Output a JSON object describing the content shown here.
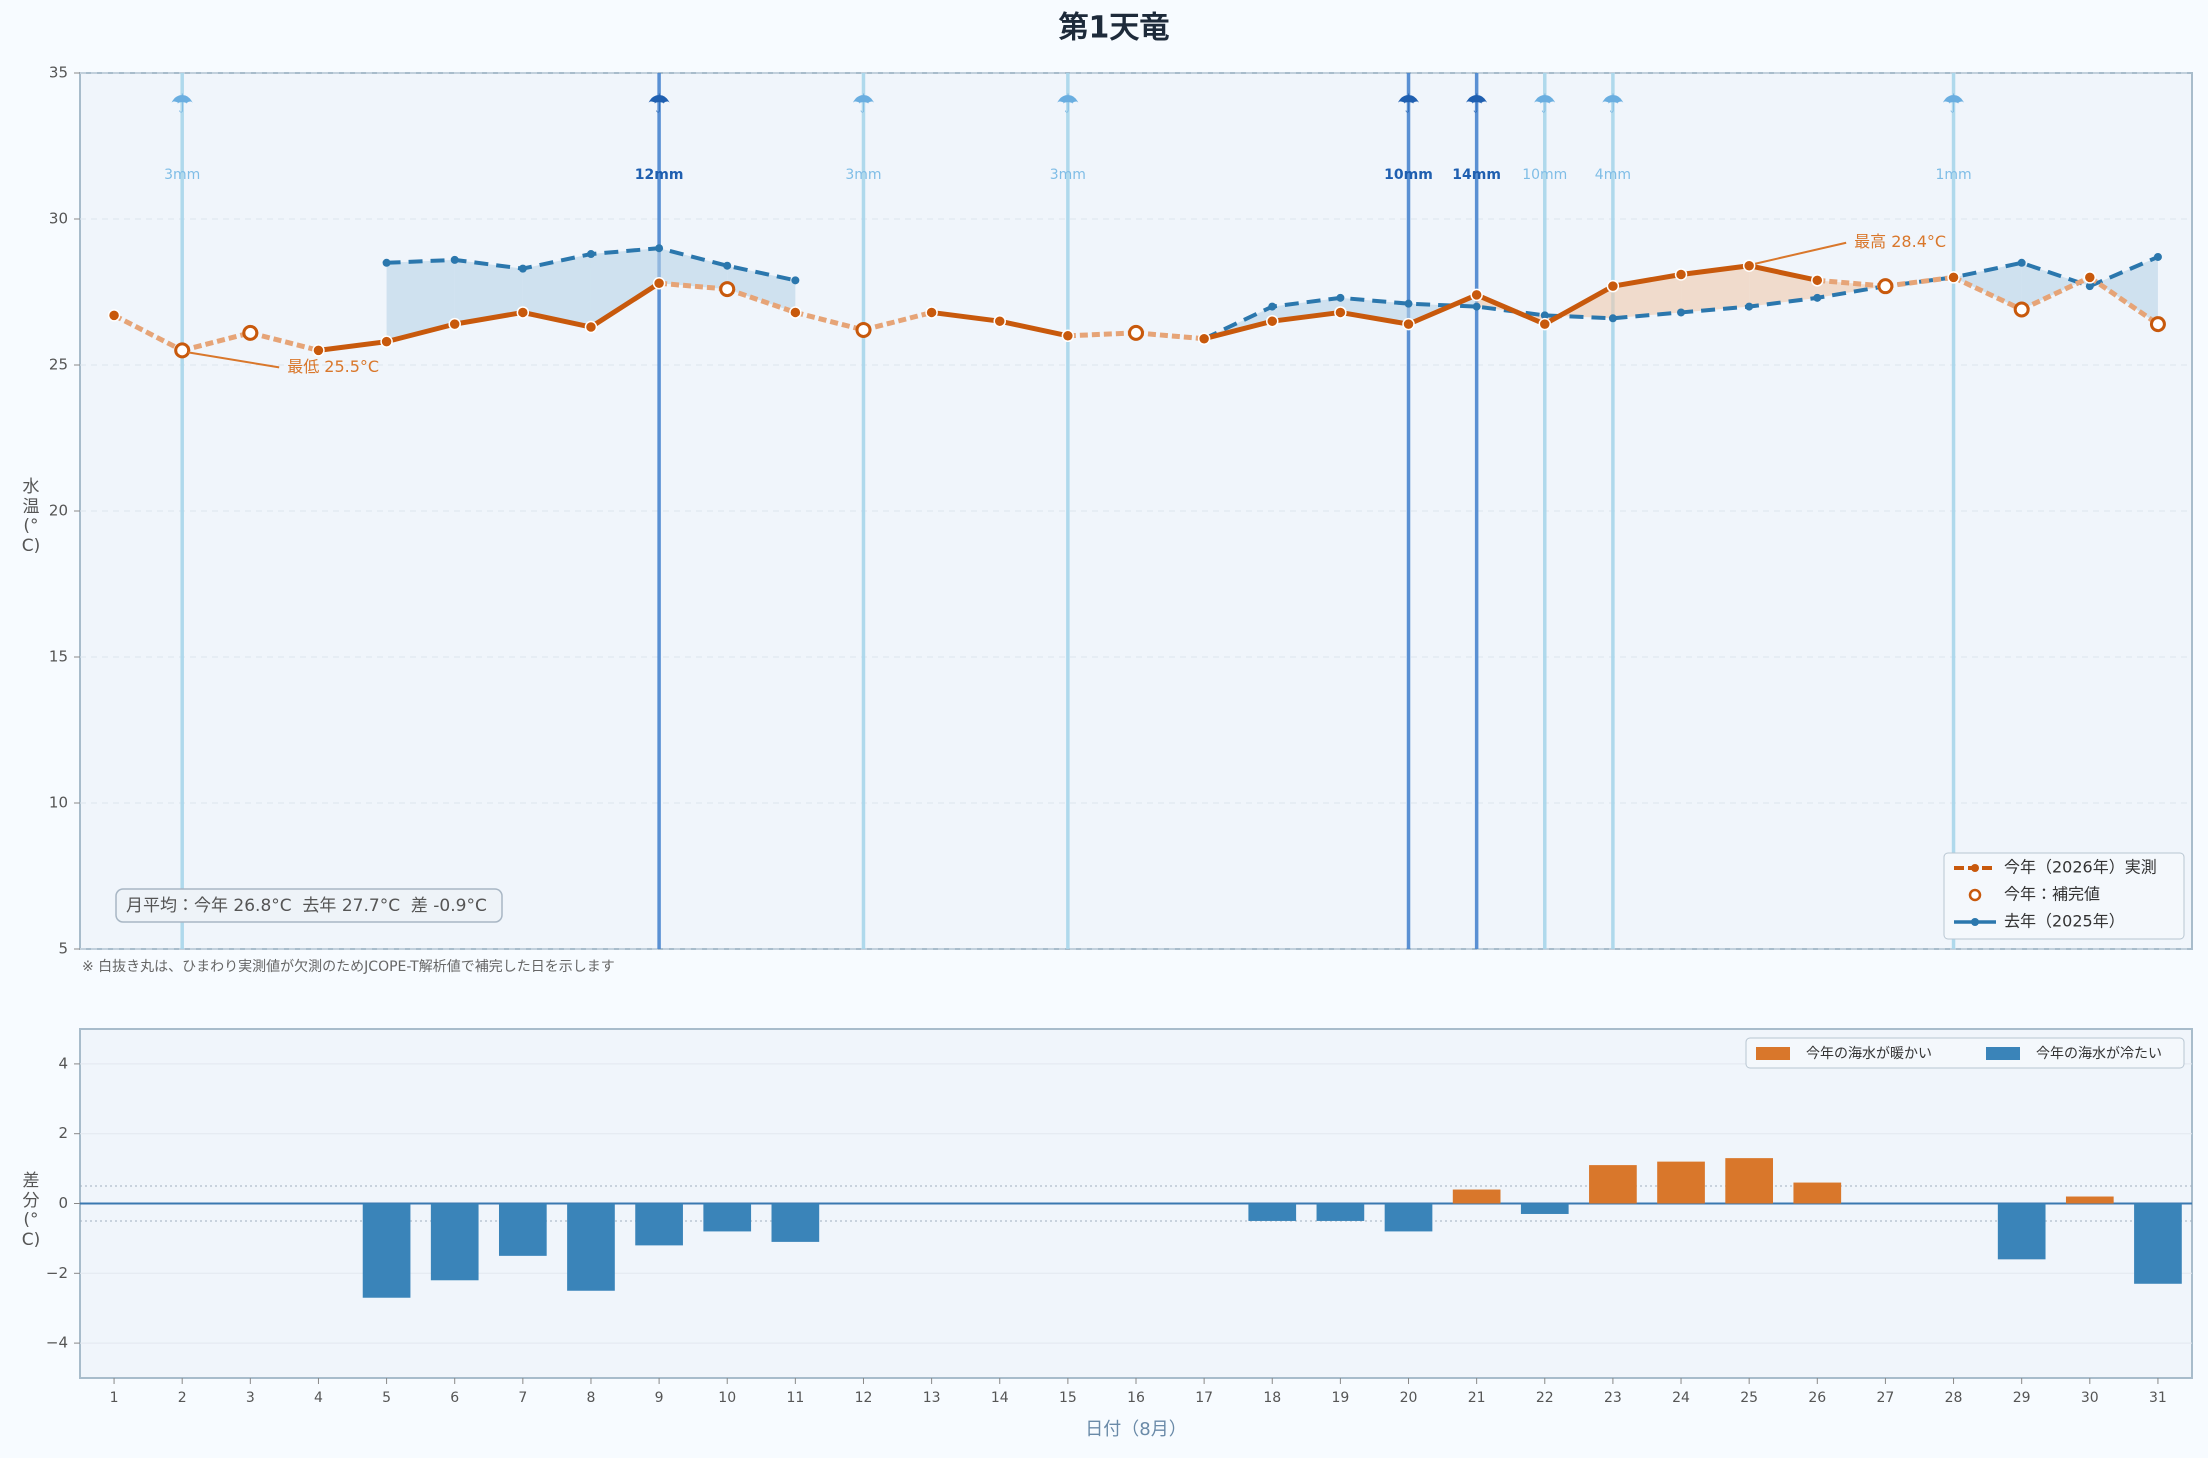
{
  "chart_data": [
    {
      "type": "line",
      "title": "第1天竜",
      "ylabel": "水温(°C)",
      "x": [
        1,
        2,
        3,
        4,
        5,
        6,
        7,
        8,
        9,
        10,
        11,
        12,
        13,
        14,
        15,
        16,
        17,
        18,
        19,
        20,
        21,
        22,
        23,
        24,
        25,
        26,
        27,
        28,
        29,
        30,
        31
      ],
      "xlim": [
        0.5,
        31.5
      ],
      "ylim": [
        5,
        35
      ],
      "yticks": [
        5,
        10,
        15,
        20,
        25,
        30,
        35
      ],
      "grid": true,
      "legend": "lower right",
      "series": [
        {
          "name": "今年（2026年）実測",
          "color": "#c8590c",
          "values": [
            26.7,
            null,
            null,
            25.5,
            25.8,
            26.4,
            26.8,
            26.3,
            27.8,
            null,
            26.8,
            null,
            26.8,
            26.5,
            26.0,
            null,
            25.9,
            26.5,
            26.8,
            26.4,
            27.4,
            26.4,
            27.7,
            28.1,
            28.4,
            27.9,
            null,
            28.0,
            null,
            28.0,
            null
          ]
        },
        {
          "name": "今年：補完値",
          "color": "#c8590c",
          "values": [
            null,
            25.5,
            26.1,
            null,
            null,
            null,
            null,
            null,
            null,
            27.6,
            null,
            26.2,
            null,
            null,
            null,
            26.1,
            null,
            null,
            null,
            null,
            null,
            null,
            null,
            null,
            null,
            null,
            27.7,
            null,
            26.9,
            null,
            26.4
          ]
        },
        {
          "name": "去年（2025年）",
          "color": "#2b77ad",
          "values": [
            null,
            null,
            null,
            null,
            28.5,
            28.6,
            28.3,
            28.8,
            29.0,
            28.4,
            27.9,
            null,
            null,
            null,
            null,
            null,
            25.9,
            27.0,
            27.3,
            27.1,
            27.0,
            26.7,
            26.6,
            26.8,
            27.0,
            27.3,
            27.7,
            28.0,
            28.5,
            27.7,
            28.7
          ]
        }
      ],
      "rain": {
        "x": [
          2,
          9,
          12,
          15,
          20,
          21,
          22,
          23,
          28
        ],
        "values": [
          3,
          12,
          3,
          3,
          10,
          14,
          10,
          4,
          1
        ],
        "value_labels": [
          "3mm",
          "12mm",
          "3mm",
          "3mm",
          "10mm",
          "14mm",
          "10mm",
          "4mm",
          "1mm"
        ],
        "heavy": [
          false,
          true,
          false,
          false,
          true,
          true,
          false,
          false,
          false
        ]
      },
      "annotations": [
        {
          "text": "最低 25.5°C",
          "x": 2
        },
        {
          "text": "最高 28.4°C",
          "x": 25
        }
      ],
      "summary": "月平均：今年 26.8°C  去年 27.7°C  差 -0.9°C",
      "footnote": "※ 白抜き丸は、ひまわり実測値が欠測のためJCOPE-T解析値で補完した日を示します"
    },
    {
      "type": "bar",
      "ylabel": "差分(°C)",
      "xlabel": "日付（8月）",
      "x": [
        1,
        2,
        3,
        4,
        5,
        6,
        7,
        8,
        9,
        10,
        11,
        12,
        13,
        14,
        15,
        16,
        17,
        18,
        19,
        20,
        21,
        22,
        23,
        24,
        25,
        26,
        27,
        28,
        29,
        30,
        31
      ],
      "xlim": [
        0.5,
        31.5
      ],
      "ylim": [
        -5,
        5
      ],
      "yticks": [
        {
          "value": -4,
          "label": "−4"
        },
        {
          "value": -2,
          "label": "−2"
        },
        0,
        2,
        4
      ],
      "band": [
        -0.5,
        0.5
      ],
      "legend": "upper right",
      "series": [
        {
          "name": "今年の海水が暖かい",
          "color": "#d9772b"
        },
        {
          "name": "今年の海水が冷たい",
          "color": "#3a84b9"
        }
      ],
      "values": [
        null,
        null,
        null,
        null,
        -2.7,
        -2.2,
        -1.5,
        -2.5,
        -1.2,
        -0.8,
        -1.1,
        null,
        null,
        null,
        null,
        null,
        0,
        -0.5,
        -0.5,
        -0.8,
        0.4,
        -0.3,
        1.1,
        1.2,
        1.3,
        0.6,
        0,
        0,
        -1.6,
        0.2,
        -2.3
      ]
    }
  ]
}
